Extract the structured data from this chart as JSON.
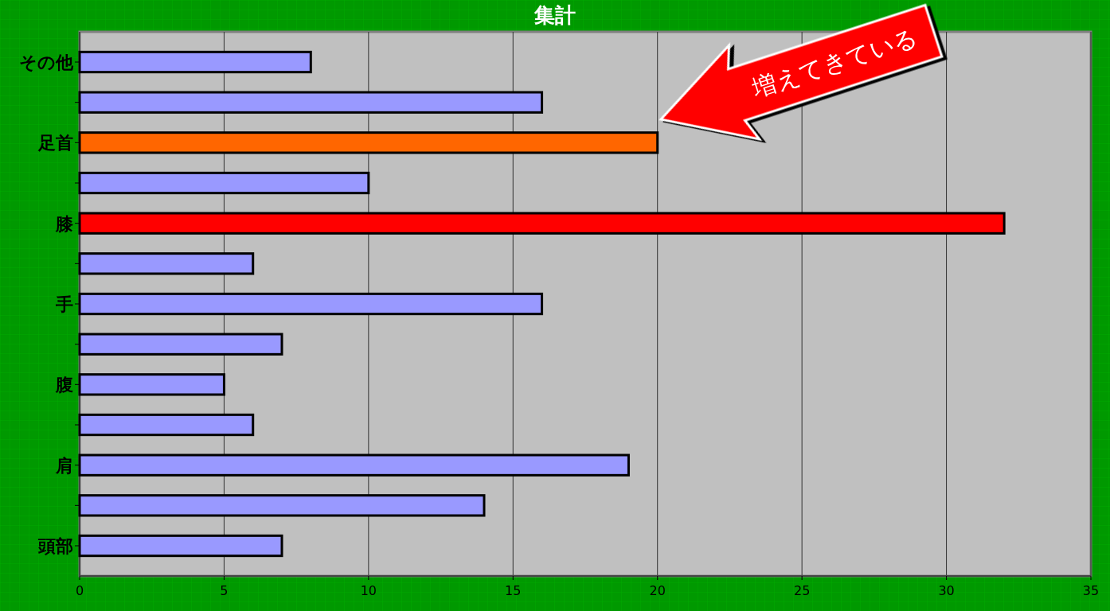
{
  "chart_data": {
    "type": "bar",
    "orientation": "horizontal",
    "title": "集計",
    "categories": [
      "その他",
      null,
      "足首",
      null,
      "膝",
      null,
      "手",
      null,
      "腹",
      null,
      "肩",
      null,
      "頭部"
    ],
    "values": [
      8,
      16,
      20,
      10,
      32,
      6,
      16,
      7,
      5,
      6,
      19,
      14,
      7
    ],
    "colors": [
      "#9999ff",
      "#9999ff",
      "#ff6600",
      "#9999ff",
      "#ff0000",
      "#9999ff",
      "#9999ff",
      "#9999ff",
      "#9999ff",
      "#9999ff",
      "#9999ff",
      "#9999ff",
      "#9999ff"
    ],
    "xlim": [
      0,
      35
    ],
    "xticks": [
      0,
      5,
      10,
      15,
      20,
      25,
      30,
      35
    ],
    "grid": "x",
    "annotations": [
      "増えてきている"
    ]
  }
}
